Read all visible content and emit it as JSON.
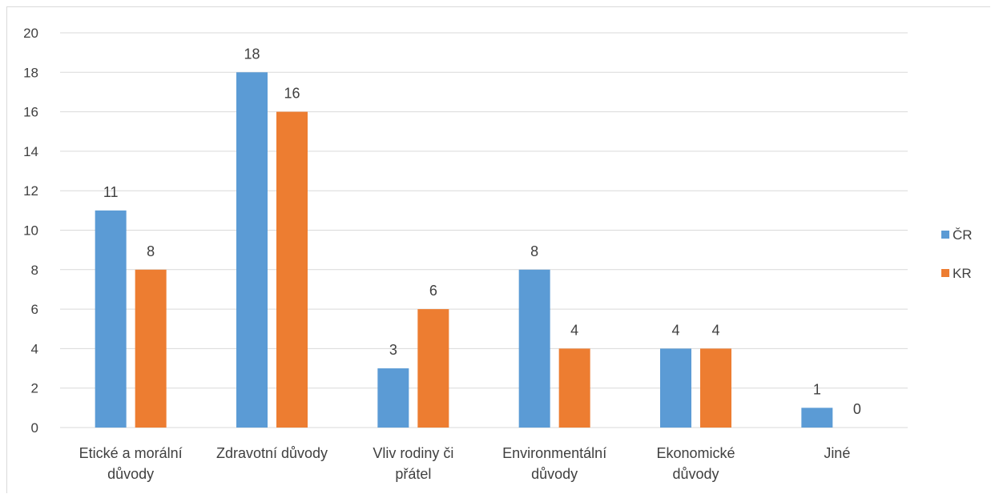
{
  "chart_data": {
    "type": "bar",
    "categories": [
      [
        "Etické a morální",
        "důvody"
      ],
      [
        "Zdravotní důvody"
      ],
      [
        "Vliv rodiny či",
        "přátel"
      ],
      [
        "Environmentální",
        "důvody"
      ],
      [
        "Ekonomické",
        "důvody"
      ],
      [
        "Jiné"
      ]
    ],
    "series": [
      {
        "name": "ČR",
        "color": "#5b9bd5",
        "values": [
          11,
          18,
          3,
          8,
          4,
          1
        ]
      },
      {
        "name": "KR",
        "color": "#ed7d31",
        "values": [
          8,
          16,
          6,
          4,
          4,
          0
        ]
      }
    ],
    "ylim": [
      0,
      20
    ],
    "yticks": [
      0,
      2,
      4,
      6,
      8,
      10,
      12,
      14,
      16,
      18,
      20
    ],
    "grid": true,
    "legend": "right",
    "gridline_color": "#d9d9d9",
    "text_color": "#404040"
  }
}
